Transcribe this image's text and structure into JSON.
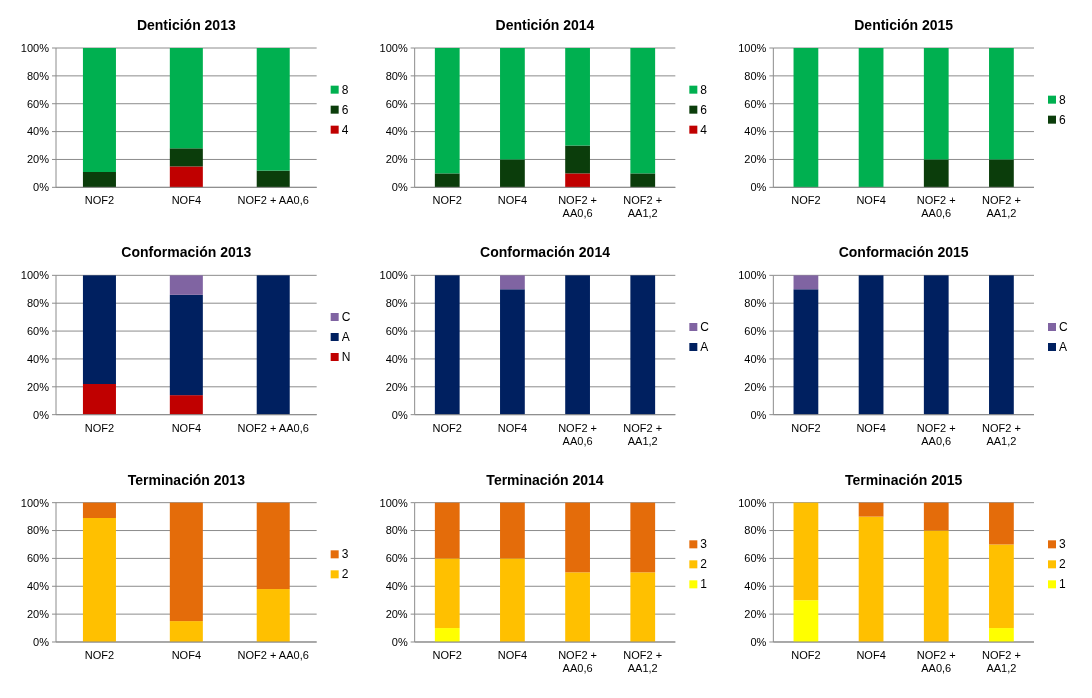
{
  "chart_data": [
    {
      "type": "bar",
      "title": "Dentición 2013",
      "stacked": true,
      "grid": "y",
      "legend": "right",
      "categories": [
        "NOF2",
        "NOF4",
        "NOF2 + AA0,6"
      ],
      "ylim": [
        0,
        100
      ],
      "yticks": [
        {
          "value": 0,
          "label": "0%"
        },
        {
          "value": 20,
          "label": "20%"
        },
        {
          "value": 40,
          "label": "40%"
        },
        {
          "value": 60,
          "label": "60%"
        },
        {
          "value": 80,
          "label": "80%"
        },
        {
          "value": 100,
          "label": "100%"
        }
      ],
      "series": [
        {
          "name": "4",
          "color": "#c00000",
          "values": [
            0,
            15,
            0
          ]
        },
        {
          "name": "6",
          "color": "#0b3d0b",
          "values": [
            11,
            13,
            12
          ]
        },
        {
          "name": "8",
          "color": "#00b050",
          "values": [
            89,
            72,
            88
          ]
        }
      ]
    },
    {
      "type": "bar",
      "title": "Dentición 2014",
      "stacked": true,
      "grid": "y",
      "legend": "right",
      "categories": [
        "NOF2",
        "NOF4",
        "NOF2 + AA0,6",
        "NOF2 + AA1,2"
      ],
      "ylim": [
        0,
        100
      ],
      "yticks": [
        {
          "value": 0,
          "label": "0%"
        },
        {
          "value": 20,
          "label": "20%"
        },
        {
          "value": 40,
          "label": "40%"
        },
        {
          "value": 60,
          "label": "60%"
        },
        {
          "value": 80,
          "label": "80%"
        },
        {
          "value": 100,
          "label": "100%"
        }
      ],
      "series": [
        {
          "name": "4",
          "color": "#c00000",
          "values": [
            0,
            0,
            10,
            0
          ]
        },
        {
          "name": "6",
          "color": "#0b3d0b",
          "values": [
            10,
            20,
            20,
            10
          ]
        },
        {
          "name": "8",
          "color": "#00b050",
          "values": [
            90,
            80,
            70,
            90
          ]
        }
      ]
    },
    {
      "type": "bar",
      "title": "Dentición 2015",
      "stacked": true,
      "grid": "y",
      "legend": "right",
      "categories": [
        "NOF2",
        "NOF4",
        "NOF2 + AA0,6",
        "NOF2 + AA1,2"
      ],
      "ylim": [
        0,
        100
      ],
      "yticks": [
        {
          "value": 0,
          "label": "0%"
        },
        {
          "value": 20,
          "label": "20%"
        },
        {
          "value": 40,
          "label": "40%"
        },
        {
          "value": 60,
          "label": "60%"
        },
        {
          "value": 80,
          "label": "80%"
        },
        {
          "value": 100,
          "label": "100%"
        }
      ],
      "series": [
        {
          "name": "6",
          "color": "#0b3d0b",
          "values": [
            0,
            0,
            20,
            20
          ]
        },
        {
          "name": "8",
          "color": "#00b050",
          "values": [
            100,
            100,
            80,
            80
          ]
        }
      ]
    },
    {
      "type": "bar",
      "title": "Conformación 2013",
      "stacked": true,
      "grid": "y",
      "legend": "right",
      "categories": [
        "NOF2",
        "NOF4",
        "NOF2 + AA0,6"
      ],
      "ylim": [
        0,
        100
      ],
      "yticks": [
        {
          "value": 0,
          "label": "0%"
        },
        {
          "value": 20,
          "label": "20%"
        },
        {
          "value": 40,
          "label": "40%"
        },
        {
          "value": 60,
          "label": "60%"
        },
        {
          "value": 80,
          "label": "80%"
        },
        {
          "value": 100,
          "label": "100%"
        }
      ],
      "series": [
        {
          "name": "N",
          "color": "#c00000",
          "values": [
            22,
            14,
            0
          ]
        },
        {
          "name": "A",
          "color": "#002060",
          "values": [
            78,
            72,
            100
          ]
        },
        {
          "name": "C",
          "color": "#8064a2",
          "values": [
            0,
            14,
            0
          ]
        }
      ]
    },
    {
      "type": "bar",
      "title": "Conformación 2014",
      "stacked": true,
      "grid": "y",
      "legend": "right",
      "categories": [
        "NOF2",
        "NOF4",
        "NOF2 + AA0,6",
        "NOF2 + AA1,2"
      ],
      "ylim": [
        0,
        100
      ],
      "yticks": [
        {
          "value": 0,
          "label": "0%"
        },
        {
          "value": 20,
          "label": "20%"
        },
        {
          "value": 40,
          "label": "40%"
        },
        {
          "value": 60,
          "label": "60%"
        },
        {
          "value": 80,
          "label": "80%"
        },
        {
          "value": 100,
          "label": "100%"
        }
      ],
      "series": [
        {
          "name": "A",
          "color": "#002060",
          "values": [
            100,
            90,
            100,
            100
          ]
        },
        {
          "name": "C",
          "color": "#8064a2",
          "values": [
            0,
            10,
            0,
            0
          ]
        }
      ]
    },
    {
      "type": "bar",
      "title": "Conformación 2015",
      "stacked": true,
      "grid": "y",
      "legend": "right",
      "categories": [
        "NOF2",
        "NOF4",
        "NOF2 + AA0,6",
        "NOF2 + AA1,2"
      ],
      "ylim": [
        0,
        100
      ],
      "yticks": [
        {
          "value": 0,
          "label": "0%"
        },
        {
          "value": 20,
          "label": "20%"
        },
        {
          "value": 40,
          "label": "40%"
        },
        {
          "value": 60,
          "label": "60%"
        },
        {
          "value": 80,
          "label": "80%"
        },
        {
          "value": 100,
          "label": "100%"
        }
      ],
      "series": [
        {
          "name": "A",
          "color": "#002060",
          "values": [
            90,
            100,
            100,
            100
          ]
        },
        {
          "name": "C",
          "color": "#8064a2",
          "values": [
            10,
            0,
            0,
            0
          ]
        }
      ]
    },
    {
      "type": "bar",
      "title": "Terminación 2013",
      "stacked": true,
      "grid": "y",
      "legend": "right",
      "categories": [
        "NOF2",
        "NOF4",
        "NOF2 + AA0,6"
      ],
      "ylim": [
        0,
        100
      ],
      "yticks": [
        {
          "value": 0,
          "label": "0%"
        },
        {
          "value": 20,
          "label": "20%"
        },
        {
          "value": 40,
          "label": "40%"
        },
        {
          "value": 60,
          "label": "60%"
        },
        {
          "value": 80,
          "label": "80%"
        },
        {
          "value": 100,
          "label": "100%"
        }
      ],
      "series": [
        {
          "name": "2",
          "color": "#ffc000",
          "values": [
            89,
            15,
            38
          ]
        },
        {
          "name": "3",
          "color": "#e46c0a",
          "values": [
            11,
            85,
            62
          ]
        }
      ]
    },
    {
      "type": "bar",
      "title": "Terminación 2014",
      "stacked": true,
      "grid": "y",
      "legend": "right",
      "categories": [
        "NOF2",
        "NOF4",
        "NOF2 + AA0,6",
        "NOF2 + AA1,2"
      ],
      "ylim": [
        0,
        100
      ],
      "yticks": [
        {
          "value": 0,
          "label": "0%"
        },
        {
          "value": 20,
          "label": "20%"
        },
        {
          "value": 40,
          "label": "40%"
        },
        {
          "value": 60,
          "label": "60%"
        },
        {
          "value": 80,
          "label": "80%"
        },
        {
          "value": 100,
          "label": "100%"
        }
      ],
      "series": [
        {
          "name": "1",
          "color": "#ffff00",
          "values": [
            10,
            0,
            0,
            0
          ]
        },
        {
          "name": "2",
          "color": "#ffc000",
          "values": [
            50,
            60,
            50,
            50
          ]
        },
        {
          "name": "3",
          "color": "#e46c0a",
          "values": [
            40,
            40,
            50,
            50
          ]
        }
      ]
    },
    {
      "type": "bar",
      "title": "Terminación 2015",
      "stacked": true,
      "grid": "y",
      "legend": "right",
      "categories": [
        "NOF2",
        "NOF4",
        "NOF2 + AA0,6",
        "NOF2 + AA1,2"
      ],
      "ylim": [
        0,
        100
      ],
      "yticks": [
        {
          "value": 0,
          "label": "0%"
        },
        {
          "value": 20,
          "label": "20%"
        },
        {
          "value": 40,
          "label": "40%"
        },
        {
          "value": 60,
          "label": "60%"
        },
        {
          "value": 80,
          "label": "80%"
        },
        {
          "value": 100,
          "label": "100%"
        }
      ],
      "series": [
        {
          "name": "1",
          "color": "#ffff00",
          "values": [
            30,
            0,
            0,
            10
          ]
        },
        {
          "name": "2",
          "color": "#ffc000",
          "values": [
            70,
            90,
            80,
            60
          ]
        },
        {
          "name": "3",
          "color": "#e46c0a",
          "values": [
            0,
            10,
            20,
            30
          ]
        }
      ]
    }
  ]
}
